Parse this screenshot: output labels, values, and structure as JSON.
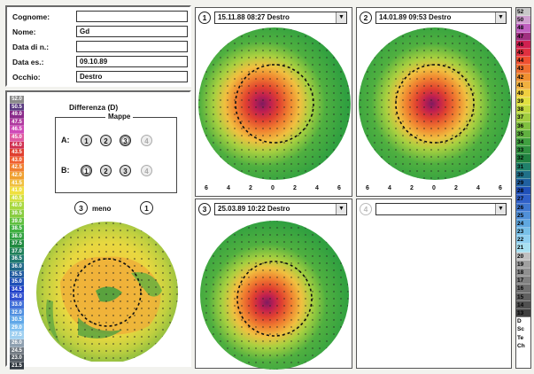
{
  "patient": {
    "fields": [
      {
        "label": "Cognome:",
        "value": ""
      },
      {
        "label": "Nome:",
        "value": "Gd"
      },
      {
        "label": "Data di n.:",
        "value": ""
      },
      {
        "label": "Data es.:",
        "value": "09.10.89"
      },
      {
        "label": "Occhio:",
        "value": "Destro"
      }
    ]
  },
  "difference": {
    "title": "Differenza (D)",
    "mappe_label": "Mappe",
    "row_a_label": "A:",
    "row_b_label": "B:",
    "radio_labels": [
      "1",
      "2",
      "3",
      "4"
    ],
    "operand_left": "3",
    "operator": "meno",
    "operand_right": "1"
  },
  "left_scale": [
    "52.0",
    "50.5",
    "49.0",
    "47.5",
    "46.5",
    "45.0",
    "44.0",
    "43.5",
    "43.0",
    "42.5",
    "42.0",
    "41.5",
    "41.0",
    "40.5",
    "40.0",
    "39.5",
    "39.0",
    "38.5",
    "38.0",
    "37.5",
    "37.0",
    "36.5",
    "36.0",
    "35.5",
    "35.0",
    "34.5",
    "34.0",
    "33.0",
    "32.0",
    "30.5",
    "29.0",
    "27.5",
    "26.0",
    "24.5",
    "23.0",
    "21.5"
  ],
  "left_scale_colors": [
    "#8a8a8a",
    "#5a3a80",
    "#8a2a8a",
    "#b03aa0",
    "#d04ab8",
    "#e05aa0",
    "#d03050",
    "#e04030",
    "#f06030",
    "#f08030",
    "#f0a030",
    "#f0c040",
    "#f0e040",
    "#d0e040",
    "#a8d840",
    "#88cc40",
    "#60c040",
    "#40b040",
    "#30a040",
    "#208a40",
    "#20805a",
    "#207870",
    "#206888",
    "#205aa0",
    "#2050b8",
    "#2040c8",
    "#3050d0",
    "#4070d8",
    "#5090e0",
    "#60a8e8",
    "#80c0f0",
    "#a0d0f0",
    "#8fa0b0",
    "#707880",
    "#505860",
    "#303840"
  ],
  "maps": [
    {
      "number": "1",
      "selector": "15.11.88  08:27 Destro"
    },
    {
      "number": "2",
      "selector": "14.01.89  09:53 Destro"
    },
    {
      "number": "3",
      "selector": "25.03.89  10:22 Destro"
    },
    {
      "number": "4",
      "selector": ""
    }
  ],
  "axis_ticks": [
    "6",
    "4",
    "2",
    "0",
    "2",
    "4",
    "6"
  ],
  "right_scale": [
    "52",
    "50",
    "48",
    "47",
    "46",
    "45",
    "44",
    "43",
    "42",
    "41",
    "40",
    "39",
    "38",
    "37",
    "36",
    "35",
    "34",
    "33",
    "32",
    "31",
    "30",
    "29",
    "28",
    "27",
    "26",
    "25",
    "24",
    "23",
    "22",
    "21",
    "20",
    "19",
    "18",
    "17",
    "16",
    "15",
    "14",
    "13",
    "D",
    "Sc",
    "Te",
    "Ch"
  ],
  "right_scale_colors": [
    "#c8c8c8",
    "#d0a0d0",
    "#c060c0",
    "#a03080",
    "#d02050",
    "#e03040",
    "#f05030",
    "#f07030",
    "#f09030",
    "#f0b040",
    "#f0d040",
    "#e0e040",
    "#c0d840",
    "#a0cc40",
    "#80c040",
    "#60b040",
    "#40a040",
    "#309040",
    "#208040",
    "#20806a",
    "#207088",
    "#2060a0",
    "#2050b8",
    "#3060c8",
    "#4078d0",
    "#5090d8",
    "#60a8e0",
    "#78c0e8",
    "#90d0f0",
    "#a8e0f0",
    "#c0c0c0",
    "#a0a0a0",
    "#909090",
    "#808080",
    "#707070",
    "#606060",
    "#505050",
    "#404040",
    "#ffffff",
    "#ffffff",
    "#ffffff",
    "#ffffff"
  ]
}
